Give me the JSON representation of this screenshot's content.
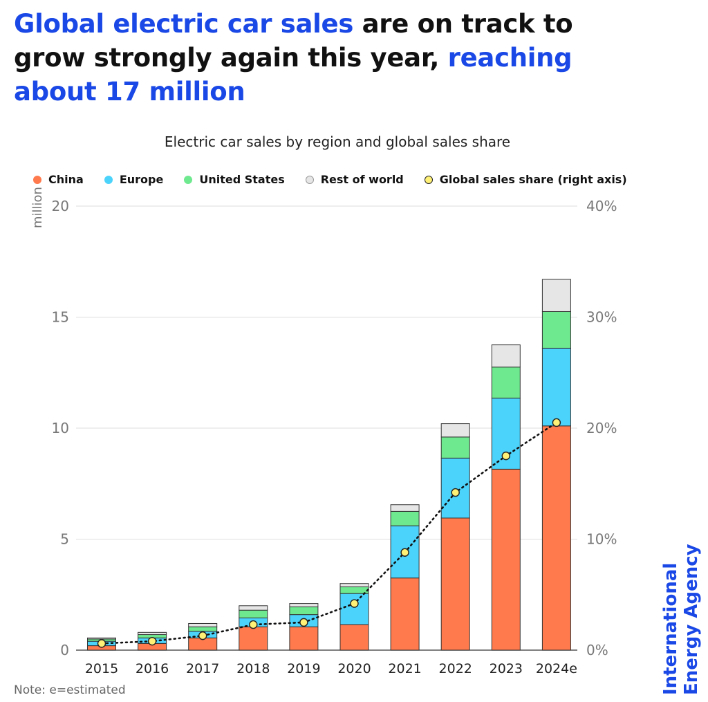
{
  "headline": {
    "part1": "Global electric car sales",
    "part2": " are on track to grow strongly again this year, ",
    "part3": "reaching about 17 million"
  },
  "colors": {
    "accent": "#1a48e6",
    "china": "#ff7a4d",
    "europe": "#4cd3fb",
    "united_states": "#6ee98f",
    "rest_of_world": "#e6e6e6",
    "share": "#fff176"
  },
  "legend": [
    {
      "label": "China",
      "color": "#ff7a4d"
    },
    {
      "label": "Europe",
      "color": "#4cd3fb"
    },
    {
      "label": "United States",
      "color": "#6ee98f"
    },
    {
      "label": "Rest of world",
      "color": "#e6e6e6"
    },
    {
      "label": "Global sales share (right axis)",
      "color": "#fff176"
    }
  ],
  "chart_data": {
    "type": "bar",
    "stacked": true,
    "title": "Electric car sales by region and global sales share",
    "ylabel": "million",
    "ylim": [
      0,
      20
    ],
    "yticks": [
      "0",
      "5",
      "10",
      "15",
      "20"
    ],
    "y2lim": [
      0,
      40
    ],
    "y2ticks": [
      "0%",
      "10%",
      "20%",
      "30%",
      "40%"
    ],
    "categories": [
      "2015",
      "2016",
      "2017",
      "2018",
      "2019",
      "2020",
      "2021",
      "2022",
      "2023",
      "2024e"
    ],
    "series": [
      {
        "name": "China",
        "values": [
          0.2,
          0.3,
          0.55,
          1.05,
          1.05,
          1.15,
          3.25,
          5.95,
          8.15,
          10.1
        ]
      },
      {
        "name": "Europe",
        "values": [
          0.2,
          0.25,
          0.3,
          0.4,
          0.55,
          1.4,
          2.35,
          2.7,
          3.2,
          3.5
        ]
      },
      {
        "name": "United States",
        "values": [
          0.1,
          0.15,
          0.2,
          0.35,
          0.35,
          0.3,
          0.65,
          0.95,
          1.4,
          1.65
        ]
      },
      {
        "name": "Rest of world",
        "values": [
          0.05,
          0.1,
          0.15,
          0.2,
          0.15,
          0.15,
          0.3,
          0.6,
          1.0,
          1.45
        ]
      }
    ],
    "line_series": {
      "name": "Global sales share (right axis)",
      "axis": "right",
      "values": [
        0.6,
        0.8,
        1.3,
        2.3,
        2.5,
        4.2,
        8.8,
        14.2,
        17.5,
        20.5
      ]
    },
    "grid": true,
    "legend_position": "top"
  },
  "note": "Note:  e=estimated",
  "brand": {
    "line1": "International",
    "line2": "Energy Agency"
  }
}
